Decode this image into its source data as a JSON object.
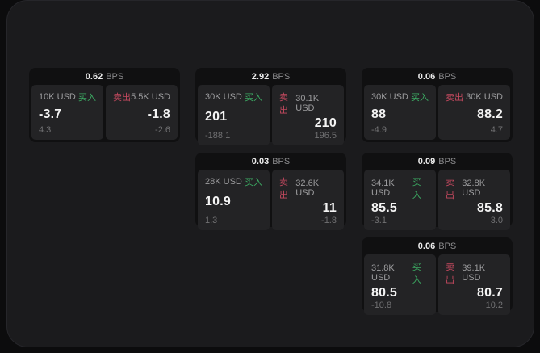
{
  "colors": {
    "buy_green": "#3cab63",
    "sell_red": "#c4495f",
    "panel_bg": "#1b1b1d",
    "card_bg": "#101011",
    "tile_bg": "#232325"
  },
  "labels": {
    "bps": "BPS",
    "buy": "买入",
    "sell": "卖出"
  },
  "cards": [
    {
      "row": 0,
      "col": 0,
      "bps": "0.62",
      "buy": {
        "notional": "10K USD",
        "price": "-3.7",
        "delta": "4.3"
      },
      "sell": {
        "notional": "5.5K USD",
        "price": "-1.8",
        "delta": "-2.6"
      }
    },
    {
      "row": 0,
      "col": 1,
      "bps": "2.92",
      "buy": {
        "notional": "30K USD",
        "price": "201",
        "delta": "-188.1"
      },
      "sell": {
        "notional": "30.1K USD",
        "price": "210",
        "delta": "196.5"
      }
    },
    {
      "row": 0,
      "col": 2,
      "bps": "0.06",
      "buy": {
        "notional": "30K USD",
        "price": "88",
        "delta": "-4.9"
      },
      "sell": {
        "notional": "30K USD",
        "price": "88.2",
        "delta": "4.7"
      }
    },
    {
      "row": 1,
      "col": 1,
      "bps": "0.03",
      "buy": {
        "notional": "28K USD",
        "price": "10.9",
        "delta": "1.3"
      },
      "sell": {
        "notional": "32.6K USD",
        "price": "11",
        "delta": "-1.8"
      }
    },
    {
      "row": 1,
      "col": 2,
      "bps": "0.09",
      "buy": {
        "notional": "34.1K USD",
        "price": "85.5",
        "delta": "-3.1"
      },
      "sell": {
        "notional": "32.8K USD",
        "price": "85.8",
        "delta": "3.0"
      }
    },
    {
      "row": 2,
      "col": 2,
      "bps": "0.06",
      "buy": {
        "notional": "31.8K USD",
        "price": "80.5",
        "delta": "-10.8"
      },
      "sell": {
        "notional": "39.1K USD",
        "price": "80.7",
        "delta": "10.2"
      }
    }
  ]
}
